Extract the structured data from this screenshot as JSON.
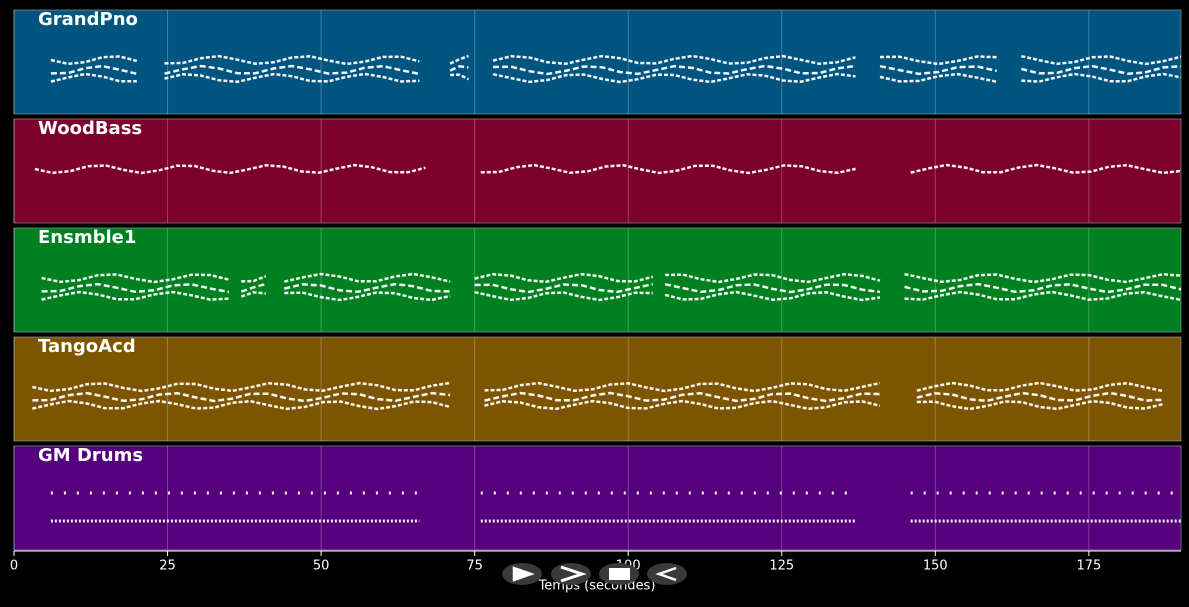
{
  "chart_data": {
    "type": "pianoroll",
    "xlabel": "Temps (secondes)",
    "xlim": [
      0,
      190
    ],
    "xticks": [
      0,
      25,
      50,
      75,
      100,
      125,
      150,
      175
    ],
    "grid": true,
    "series": [
      {
        "name": "GrandPno",
        "color": "#005580",
        "phrases": [
          [
            6,
            20
          ],
          [
            24.5,
            66
          ],
          [
            71,
            74
          ],
          [
            78,
            137
          ],
          [
            141,
            160
          ],
          [
            164,
            190
          ]
        ]
      },
      {
        "name": "WoodBass",
        "color": "#7d002b",
        "phrases": [
          [
            3.4,
            67
          ],
          [
            76,
            137
          ],
          [
            146,
            190
          ]
        ]
      },
      {
        "name": "Ensmble1",
        "color": "#008020",
        "phrases": [
          [
            4.5,
            35
          ],
          [
            37,
            41
          ],
          [
            44,
            71
          ],
          [
            75,
            104
          ],
          [
            106,
            141
          ],
          [
            145,
            190
          ]
        ]
      },
      {
        "name": "TangoAcd",
        "color": "#7d5500",
        "phrases": [
          [
            3,
            71
          ],
          [
            76.6,
            141
          ],
          [
            147,
            187
          ]
        ]
      },
      {
        "name": "GM Drums",
        "color": "#55007d",
        "phrases": [
          [
            6,
            66
          ],
          [
            76,
            137
          ],
          [
            146,
            190
          ]
        ]
      }
    ]
  }
}
